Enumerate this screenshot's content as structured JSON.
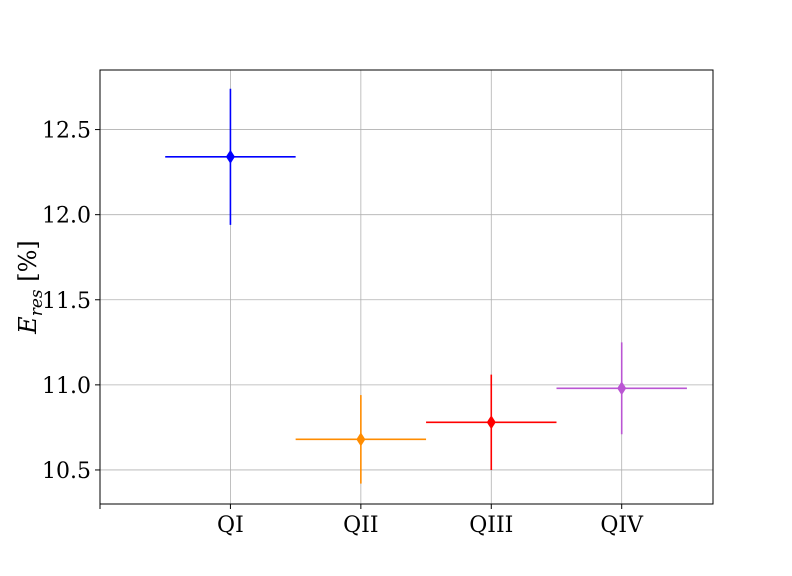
{
  "chart_data": {
    "type": "scatter",
    "title": "",
    "xlabel": "",
    "ylabel_main": "E",
    "ylabel_sub": "res",
    "ylabel_unit": " [%]",
    "ylim": [
      10.3,
      12.85
    ],
    "xlim": [
      -1.0,
      3.7
    ],
    "yticks": [
      "10.5",
      "11.0",
      "11.5",
      "12.0",
      "12.5"
    ],
    "ytick_values": [
      10.5,
      11.0,
      11.5,
      12.0,
      12.5
    ],
    "categories": [
      "QI",
      "QII",
      "QIII",
      "QIV"
    ],
    "grid": true,
    "points": [
      {
        "category": "QI",
        "x": 0,
        "y": 12.34,
        "yerr": 0.4,
        "xerr": 0.5,
        "color": "#0000ff"
      },
      {
        "category": "QII",
        "x": 1,
        "y": 10.68,
        "yerr": 0.26,
        "xerr": 0.5,
        "color": "#ff8c00"
      },
      {
        "category": "QIII",
        "x": 2,
        "y": 10.78,
        "yerr": 0.28,
        "xerr": 0.5,
        "color": "#ff0000"
      },
      {
        "category": "QIV",
        "x": 3,
        "y": 10.98,
        "yerr": 0.27,
        "xerr": 0.5,
        "color": "#ba55d3"
      }
    ]
  }
}
